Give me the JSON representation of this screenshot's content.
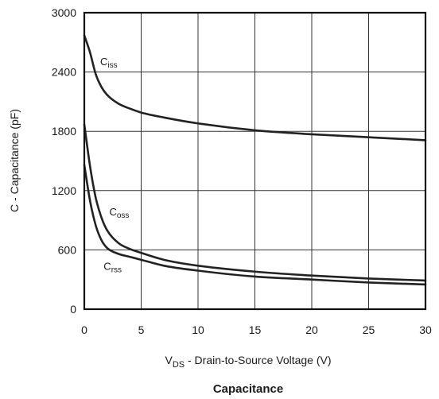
{
  "chart_data": {
    "type": "line",
    "title": "Capacitance",
    "xlabel": {
      "main": "V",
      "sub": "DS",
      "rest": " - Drain-to-Source Voltage (V)"
    },
    "ylabel": "C - Capacitance (pF)",
    "xlim": [
      0,
      30
    ],
    "ylim": [
      0,
      3000
    ],
    "x_ticks": [
      0,
      5,
      10,
      15,
      20,
      25,
      30
    ],
    "y_ticks": [
      0,
      600,
      1200,
      1800,
      2400,
      3000
    ],
    "grid": true,
    "series": [
      {
        "name": {
          "main": "C",
          "sub": "iss"
        },
        "x": [
          0,
          0.5,
          1,
          1.5,
          2,
          3,
          4,
          5,
          7,
          10,
          15,
          20,
          25,
          30
        ],
        "y": [
          2770,
          2600,
          2380,
          2250,
          2170,
          2080,
          2030,
          1990,
          1940,
          1880,
          1810,
          1770,
          1740,
          1710
        ]
      },
      {
        "name": {
          "main": "C",
          "sub": "oss"
        },
        "x": [
          0,
          0.5,
          1,
          1.5,
          2,
          3,
          4,
          5,
          7,
          10,
          15,
          20,
          25,
          30
        ],
        "y": [
          1870,
          1450,
          1130,
          930,
          800,
          670,
          610,
          570,
          500,
          440,
          380,
          340,
          310,
          290
        ]
      },
      {
        "name": {
          "main": "C",
          "sub": "rss"
        },
        "x": [
          0,
          0.5,
          1,
          1.5,
          2,
          3,
          4,
          5,
          7,
          10,
          15,
          20,
          25,
          30
        ],
        "y": [
          1460,
          1100,
          850,
          700,
          620,
          560,
          530,
          500,
          440,
          390,
          330,
          300,
          270,
          250
        ]
      }
    ]
  }
}
